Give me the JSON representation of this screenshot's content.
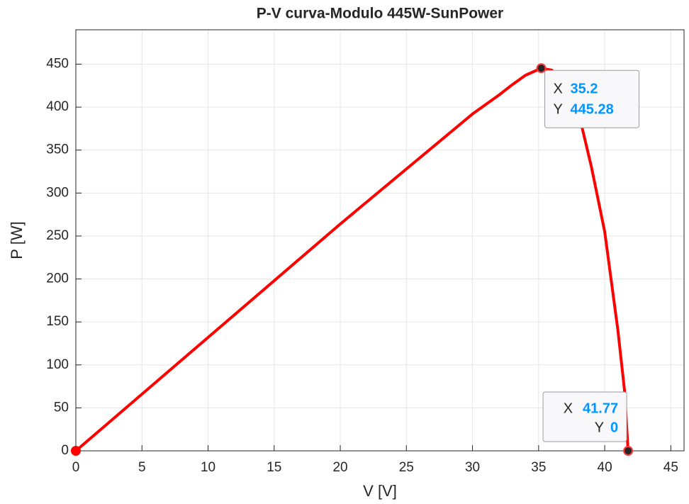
{
  "chart_data": {
    "type": "line",
    "title": "P-V curva-Modulo 445W-SunPower",
    "xlabel": "V [V]",
    "ylabel": "P [W]",
    "series": [
      {
        "name": "P-V",
        "color": "#ff0000",
        "x": [
          0,
          5,
          10,
          15,
          20,
          25,
          30,
          32,
          33,
          34,
          35.2,
          36,
          37,
          38,
          39,
          40,
          41,
          41.5,
          41.77
        ],
        "values": [
          0,
          66,
          132,
          198,
          264,
          328,
          392,
          414,
          426,
          437,
          445.28,
          443,
          430,
          395,
          330,
          255,
          140,
          70,
          0
        ]
      }
    ],
    "xlim": [
      0,
      46
    ],
    "xticks": [
      0,
      5,
      10,
      15,
      20,
      25,
      30,
      35,
      40,
      45
    ],
    "ylim": [
      0,
      490
    ],
    "yticks": [
      0,
      50,
      100,
      150,
      200,
      250,
      300,
      350,
      400,
      450
    ],
    "grid": true,
    "datatip_axis_names": [
      "X",
      "Y"
    ],
    "datatips": [
      {
        "x": 35.2,
        "y": 445.28
      },
      {
        "x": 41.77,
        "y": 0
      }
    ]
  }
}
